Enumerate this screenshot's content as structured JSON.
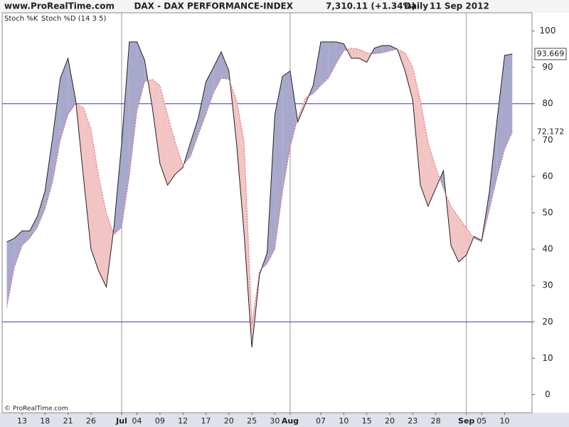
{
  "chart_data": {
    "type": "stochastic",
    "site": "www.ProRealTime.com",
    "title": "DAX - DAX PERFORMANCE-INDEX",
    "price": "7,310.11 (+1.34%)",
    "period": "Daily",
    "date": "11 Sep 2012",
    "copyright": "© ProRealTime.com",
    "categories": [
      null,
      null,
      "13",
      null,
      null,
      "18",
      null,
      null,
      "21",
      null,
      null,
      "26",
      null,
      null,
      null,
      "Jul",
      null,
      "04",
      null,
      null,
      "09",
      null,
      null,
      "12",
      null,
      null,
      "17",
      null,
      null,
      "20",
      null,
      null,
      "25",
      null,
      null,
      "30",
      null,
      "Aug",
      null,
      null,
      null,
      "07",
      null,
      null,
      "10",
      null,
      null,
      "15",
      null,
      null,
      "20",
      null,
      null,
      "23",
      null,
      null,
      "28",
      null,
      null,
      null,
      "Sep",
      null,
      "05",
      null,
      null,
      "10",
      null
    ],
    "series": [
      {
        "name": "Stoch %K",
        "color": "#222222",
        "values": [
          42,
          43,
          45,
          45,
          49,
          56,
          71,
          87,
          92.5,
          81,
          60,
          40,
          34,
          29.6,
          46,
          69,
          97,
          97,
          92,
          79,
          63.5,
          57.6,
          60.6,
          62.5,
          69.4,
          76,
          86,
          90,
          94.3,
          89,
          69,
          44,
          13,
          33,
          39,
          77,
          87.5,
          89,
          75,
          80,
          85,
          97,
          97,
          97,
          96.5,
          92.5,
          92.5,
          91.4,
          95.3,
          96,
          96,
          95,
          89,
          81,
          57.6,
          51.8,
          56.7,
          61.6,
          41,
          36.5,
          38.4,
          43.5,
          42.4,
          55.7,
          75.3,
          93.3,
          93.669
        ]
      },
      {
        "name": "Stoch %D (14 3 5)",
        "color": "#e06060",
        "values": [
          24,
          35,
          41,
          43,
          46,
          51,
          58.6,
          70,
          77,
          80,
          79,
          73,
          60,
          50,
          44,
          46,
          60,
          78,
          86,
          86.7,
          85,
          77,
          69.4,
          63,
          65.5,
          71.4,
          77,
          83,
          87,
          86.7,
          81,
          69.4,
          19.4,
          34,
          36,
          40,
          55.7,
          68,
          76,
          81.6,
          82.7,
          85,
          87,
          91,
          94.5,
          95.3,
          95,
          94,
          93.7,
          94,
          94.5,
          95,
          94,
          90,
          81,
          69.4,
          62.5,
          56.7,
          51.8,
          48.8,
          45.9,
          43,
          42,
          50.8,
          59.6,
          67.5,
          72.172
        ]
      }
    ],
    "fill_above_color": "#a8a8cc",
    "fill_below_color": "#f2c4c4",
    "ylim": [
      -5,
      105
    ],
    "yticks": [
      0,
      10,
      20,
      30,
      40,
      50,
      60,
      70,
      80,
      90,
      100
    ],
    "levels": [
      20,
      80
    ],
    "level_color": "#3a3aa0"
  }
}
